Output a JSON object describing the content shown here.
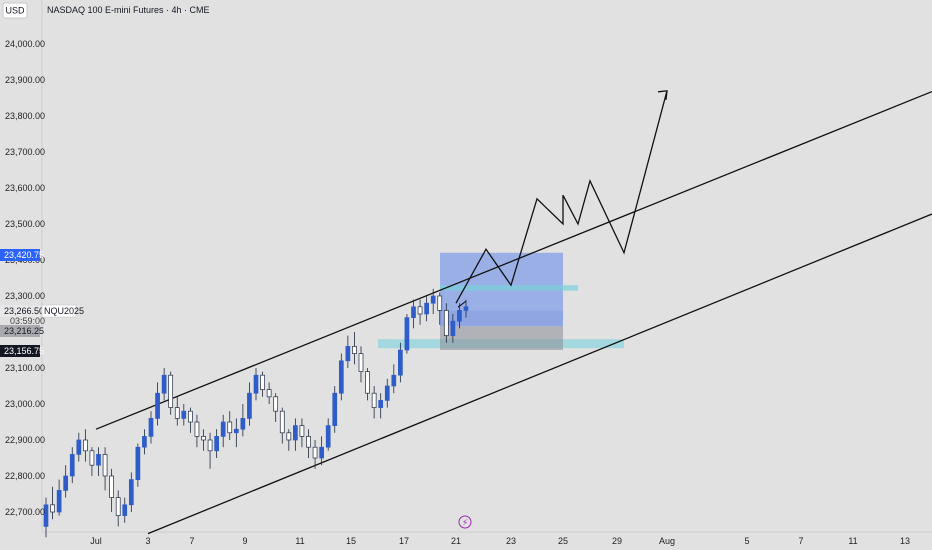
{
  "header": {
    "currency_button": "USD",
    "title": "NASDAQ 100 E-mini Futures · 4h · CME"
  },
  "colors": {
    "background": "#e1e1e1",
    "candle_up": "#2e5cc8",
    "candle_down": "#1e2a40",
    "wick": "#1e2a40",
    "channel_line": "#111111",
    "projection_path": "#111111",
    "zone_blue": "#5f86e9",
    "zone_cyan": "#79d2dc",
    "zone_gray": "#8f939c",
    "badge_blue": "#2962ff",
    "badge_dark": "#131722",
    "event_marker": "#9c27b0"
  },
  "price_axis": {
    "labels": [
      "24,000.00",
      "23,900.00",
      "23,800.00",
      "23,700.00",
      "23,600.00",
      "23,500.00",
      "23,400.00",
      "23,300.00",
      "23,100.00",
      "23,000.00",
      "22,900.00",
      "22,800.00",
      "22,700.00"
    ]
  },
  "time_axis": {
    "labels": [
      "Jul",
      "3",
      "7",
      "9",
      "11",
      "15",
      "17",
      "21",
      "23",
      "25",
      "29",
      "Aug",
      "5",
      "7",
      "11",
      "13"
    ]
  },
  "badges": {
    "blue_price": "23,420.75",
    "symbol_price": "23,266.50",
    "symbol_name": "NQU2025",
    "countdown": "03:59:00",
    "gray_price": "23,216.25",
    "dark_price": "23,156.75"
  },
  "event_marker": {
    "glyph": "⚡",
    "icon": "lightning-icon"
  },
  "chart_data": {
    "type": "candlestick",
    "title": "NASDAQ 100 E-mini Futures · 4h · CME",
    "x_dates": [
      "Jul 1",
      "Jul 3",
      "Jul 7",
      "Jul 9",
      "Jul 11",
      "Jul 15",
      "Jul 17",
      "Jul 21",
      "Jul 23",
      "Jul 25",
      "Jul 29",
      "Aug 1",
      "Aug 5",
      "Aug 7",
      "Aug 11",
      "Aug 13"
    ],
    "ylim": [
      22650,
      24050
    ],
    "grid": false,
    "candles_approx": [
      [
        22660,
        22720,
        22630,
        22740
      ],
      [
        22720,
        22700,
        22680,
        22770
      ],
      [
        22700,
        22760,
        22690,
        22790
      ],
      [
        22760,
        22800,
        22740,
        22830
      ],
      [
        22800,
        22860,
        22780,
        22880
      ],
      [
        22860,
        22900,
        22840,
        22920
      ],
      [
        22900,
        22870,
        22840,
        22930
      ],
      [
        22870,
        22830,
        22800,
        22880
      ],
      [
        22830,
        22860,
        22800,
        22880
      ],
      [
        22860,
        22800,
        22760,
        22880
      ],
      [
        22800,
        22740,
        22700,
        22820
      ],
      [
        22740,
        22690,
        22660,
        22760
      ],
      [
        22690,
        22720,
        22670,
        22740
      ],
      [
        22720,
        22790,
        22700,
        22810
      ],
      [
        22790,
        22880,
        22770,
        22890
      ],
      [
        22880,
        22910,
        22860,
        22930
      ],
      [
        22910,
        22960,
        22890,
        22980
      ],
      [
        22960,
        23030,
        22940,
        23060
      ],
      [
        23030,
        23080,
        23010,
        23100
      ],
      [
        23080,
        22990,
        22970,
        23090
      ],
      [
        22990,
        22960,
        22940,
        23020
      ],
      [
        22960,
        22980,
        22940,
        23000
      ],
      [
        22980,
        22950,
        22920,
        22990
      ],
      [
        22950,
        22910,
        22880,
        22970
      ],
      [
        22910,
        22900,
        22870,
        22930
      ],
      [
        22900,
        22870,
        22820,
        22920
      ],
      [
        22870,
        22910,
        22850,
        22930
      ],
      [
        22910,
        22950,
        22880,
        22970
      ],
      [
        22950,
        22920,
        22900,
        22980
      ],
      [
        22920,
        22930,
        22880,
        22960
      ],
      [
        22930,
        22960,
        22910,
        23000
      ],
      [
        22960,
        23030,
        22940,
        23060
      ],
      [
        23030,
        23080,
        23010,
        23100
      ],
      [
        23080,
        23040,
        23020,
        23090
      ],
      [
        23040,
        23020,
        23000,
        23060
      ],
      [
        23020,
        22980,
        22950,
        23030
      ],
      [
        22980,
        22920,
        22890,
        22990
      ],
      [
        22920,
        22900,
        22870,
        22930
      ],
      [
        22900,
        22940,
        22870,
        22960
      ],
      [
        22940,
        22910,
        22880,
        22960
      ],
      [
        22910,
        22880,
        22850,
        22930
      ],
      [
        22880,
        22850,
        22820,
        22900
      ],
      [
        22850,
        22880,
        22830,
        22910
      ],
      [
        22880,
        22940,
        22870,
        22960
      ],
      [
        22940,
        23030,
        22920,
        23050
      ],
      [
        23030,
        23120,
        23010,
        23140
      ],
      [
        23120,
        23160,
        23100,
        23190
      ],
      [
        23160,
        23140,
        23110,
        23200
      ],
      [
        23140,
        23090,
        23060,
        23160
      ],
      [
        23090,
        23030,
        23010,
        23100
      ],
      [
        23030,
        22990,
        22960,
        23050
      ],
      [
        22990,
        23010,
        22960,
        23030
      ],
      [
        23010,
        23050,
        22990,
        23070
      ],
      [
        23050,
        23080,
        23030,
        23110
      ],
      [
        23080,
        23150,
        23060,
        23170
      ],
      [
        23150,
        23240,
        23140,
        23250
      ],
      [
        23240,
        23270,
        23210,
        23290
      ],
      [
        23270,
        23250,
        23220,
        23290
      ],
      [
        23250,
        23280,
        23230,
        23300
      ],
      [
        23280,
        23300,
        23250,
        23320
      ],
      [
        23300,
        23260,
        23220,
        23310
      ],
      [
        23260,
        23190,
        23170,
        23280
      ],
      [
        23190,
        23230,
        23170,
        23250
      ],
      [
        23230,
        23260,
        23210,
        23280
      ],
      [
        23260,
        23270,
        23240,
        23290
      ]
    ],
    "channel_upper": [
      {
        "date": "Jul 1",
        "price": 22930
      },
      {
        "date": "Aug 13",
        "price": 23840
      }
    ],
    "channel_lower": [
      {
        "date": "Jul 3",
        "price": 22640
      },
      {
        "date": "Aug 13",
        "price": 23500
      }
    ],
    "projection_path": [
      {
        "date": "Jul 21",
        "price": 23280
      },
      {
        "date": "Jul 22",
        "price": 23430
      },
      {
        "date": "Jul 23",
        "price": 23330
      },
      {
        "date": "Jul 24",
        "price": 23570
      },
      {
        "date": "Jul 25",
        "price": 23500
      },
      {
        "date": "Jul 25",
        "price": 23580
      },
      {
        "date": "Jul 26",
        "price": 23500
      },
      {
        "date": "Jul 27",
        "price": 23620
      },
      {
        "date": "Jul 30",
        "price": 23420
      },
      {
        "date": "Aug 1",
        "price": 23870
      }
    ],
    "zones": [
      {
        "name": "target-zone",
        "from": "Jul 20",
        "to": "Jul 25",
        "top": 23420,
        "bottom": 23260,
        "color": "#5f86e9"
      },
      {
        "name": "entry-zone",
        "from": "Jul 20",
        "to": "Jul 25",
        "top": 23260,
        "bottom": 23216,
        "color": "#4f77e6"
      },
      {
        "name": "upper-band",
        "from": "Jul 20",
        "to": "Jul 26",
        "top": 23330,
        "bottom": 23315,
        "color": "#79d2dc"
      },
      {
        "name": "demand-band",
        "from": "Jul 16",
        "to": "Jul 30",
        "top": 23180,
        "bottom": 23155,
        "color": "#79d2dc"
      },
      {
        "name": "stop-zone",
        "from": "Jul 20",
        "to": "Jul 25",
        "top": 23216,
        "bottom": 23150,
        "color": "#8f939c"
      }
    ]
  }
}
